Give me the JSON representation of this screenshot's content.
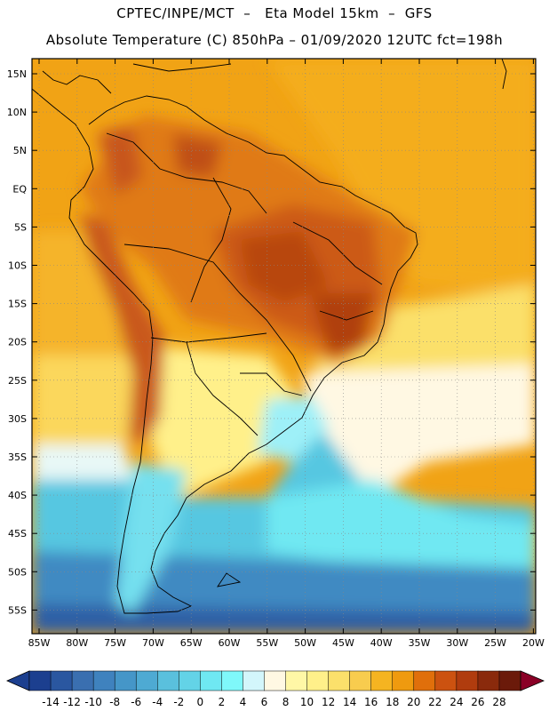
{
  "header": {
    "line1": "CPTEC/INPE/MCT  –   Eta Model 15km  –  GFS",
    "line2": "Absolute Temperature (C) 850hPa – 01/09/2020 12UTC fct=198h"
  },
  "map": {
    "lon_labels": [
      "85W",
      "80W",
      "75W",
      "70W",
      "65W",
      "60W",
      "55W",
      "50W",
      "45W",
      "40W",
      "35W",
      "30W",
      "25W",
      "20W"
    ],
    "lat_labels": [
      "15N",
      "10N",
      "5N",
      "EQ",
      "5S",
      "10S",
      "15S",
      "20S",
      "25S",
      "30S",
      "35S",
      "40S",
      "45S",
      "50S",
      "55S"
    ]
  },
  "colorbar": {
    "labels": [
      "-14",
      "-12",
      "-10",
      "-8",
      "-6",
      "-4",
      "-2",
      "0",
      "2",
      "4",
      "6",
      "8",
      "10",
      "12",
      "14",
      "16",
      "18",
      "20",
      "22",
      "24",
      "26",
      "28"
    ],
    "colors": [
      "#1c3f8f",
      "#2a57a0",
      "#3a6fb0",
      "#3f82be",
      "#4596c8",
      "#4eaad3",
      "#5ac0dd",
      "#63d3e7",
      "#6fe8f2",
      "#7ff8fa",
      "#d3f6fb",
      "#fff8e3",
      "#fff7a6",
      "#fff08a",
      "#fbe06b",
      "#f8cc4e",
      "#f5b421",
      "#ef9a0f",
      "#e06f0b",
      "#cc5210",
      "#b03c0e",
      "#8a2a0c",
      "#6b1a0a"
    ]
  }
}
